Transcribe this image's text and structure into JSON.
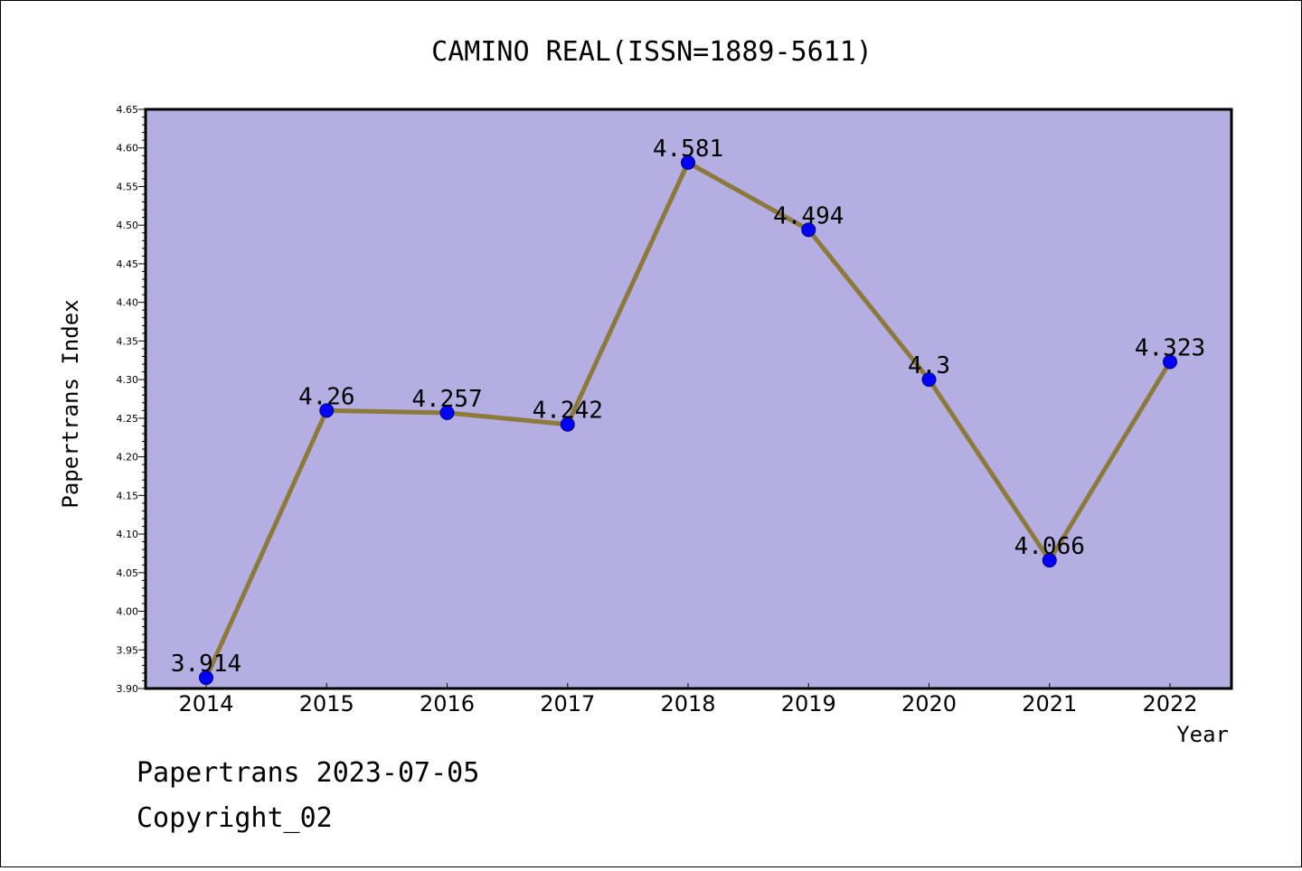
{
  "chart_data": {
    "type": "line",
    "title": "CAMINO REAL(ISSN=1889-5611)",
    "xlabel": "Year",
    "ylabel": "Papertrans Index",
    "x": [
      "2014",
      "2015",
      "2016",
      "2017",
      "2018",
      "2019",
      "2020",
      "2021",
      "2022"
    ],
    "values": [
      3.914,
      4.26,
      4.257,
      4.242,
      4.581,
      4.494,
      4.3,
      4.066,
      4.323
    ],
    "data_labels": [
      "3.914",
      "4.26",
      "4.257",
      "4.242",
      "4.581",
      "4.494",
      "4.3",
      "4.066",
      "4.323"
    ],
    "ylim": [
      3.9,
      4.65
    ],
    "yticks": [
      "3.90",
      "3.95",
      "4.00",
      "4.05",
      "4.10",
      "4.15",
      "4.20",
      "4.25",
      "4.30",
      "4.35",
      "4.40",
      "4.45",
      "4.50",
      "4.55",
      "4.60",
      "4.65"
    ],
    "grid": false,
    "colors": {
      "plot_background": "#b4aee2",
      "line": "#8b7a3a",
      "marker": "#0000ff"
    }
  },
  "footer": {
    "line1": "Papertrans 2023-07-05",
    "line2": "Copyright_02"
  }
}
